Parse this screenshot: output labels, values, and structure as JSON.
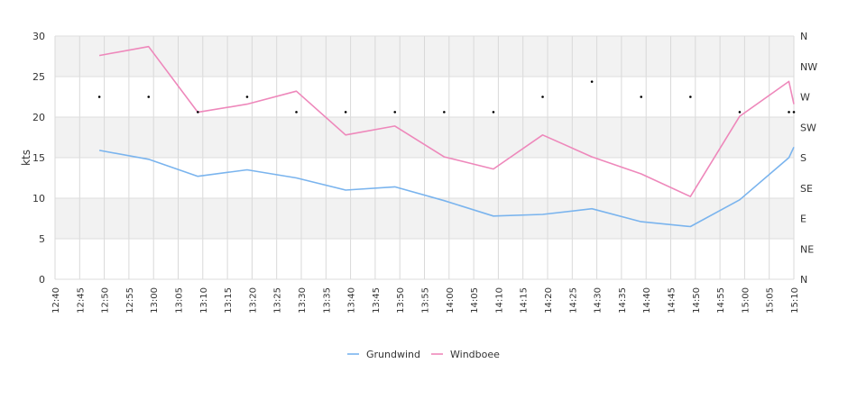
{
  "chart_data": {
    "type": "line",
    "ylabel": "kts",
    "ylim": [
      0,
      30
    ],
    "yticks": [
      0,
      5,
      10,
      15,
      20,
      25,
      30
    ],
    "y2_ticks": [
      "N",
      "NE",
      "E",
      "SE",
      "S",
      "SW",
      "W",
      "NW",
      "N"
    ],
    "x_ticks": [
      "12:40",
      "12:45",
      "12:50",
      "12:55",
      "13:00",
      "13:05",
      "13:10",
      "13:15",
      "13:20",
      "13:25",
      "13:30",
      "13:35",
      "13:40",
      "13:45",
      "13:50",
      "13:55",
      "14:00",
      "14:05",
      "14:10",
      "14:15",
      "14:20",
      "14:25",
      "14:30",
      "14:35",
      "14:40",
      "14:45",
      "14:50",
      "14:55",
      "15:00",
      "15:05",
      "15:10"
    ],
    "xlim": [
      "12:40",
      "15:10"
    ],
    "grid": true,
    "legend_position": "bottom",
    "series": [
      {
        "name": "Grundwind",
        "color": "#7ab4ee",
        "x": [
          "12:49",
          "12:59",
          "13:09",
          "13:19",
          "13:29",
          "13:39",
          "13:49",
          "13:59",
          "14:09",
          "14:19",
          "14:29",
          "14:39",
          "14:49",
          "14:59",
          "15:09",
          "15:10"
        ],
        "values": [
          15.9,
          14.8,
          12.7,
          13.5,
          12.5,
          11.0,
          11.4,
          9.7,
          7.8,
          8.0,
          8.7,
          7.1,
          6.5,
          9.8,
          15.0,
          16.3
        ]
      },
      {
        "name": "Windboee",
        "color": "#ee88bb",
        "x": [
          "12:49",
          "12:59",
          "13:09",
          "13:19",
          "13:29",
          "13:39",
          "13:49",
          "13:59",
          "14:09",
          "14:19",
          "14:29",
          "14:39",
          "14:49",
          "14:59",
          "15:09",
          "15:10"
        ],
        "values": [
          27.6,
          28.7,
          20.6,
          21.6,
          23.2,
          17.8,
          18.9,
          15.1,
          13.6,
          17.8,
          15.1,
          13.0,
          10.2,
          20.1,
          24.4,
          21.6
        ]
      }
    ],
    "direction_points": {
      "x": [
        "12:49",
        "12:59",
        "13:09",
        "13:19",
        "13:29",
        "13:39",
        "13:49",
        "13:59",
        "14:09",
        "14:19",
        "14:29",
        "14:39",
        "14:49",
        "14:59",
        "15:09",
        "15:10"
      ],
      "values": [
        "W",
        "W",
        "WSW",
        "W",
        "WSW",
        "WSW",
        "WSW",
        "WSW",
        "WSW",
        "W",
        "WNW",
        "W",
        "W",
        "WSW",
        "WSW",
        "WSW"
      ]
    }
  },
  "legend": {
    "item1": "Grundwind",
    "item2": "Windboee"
  }
}
